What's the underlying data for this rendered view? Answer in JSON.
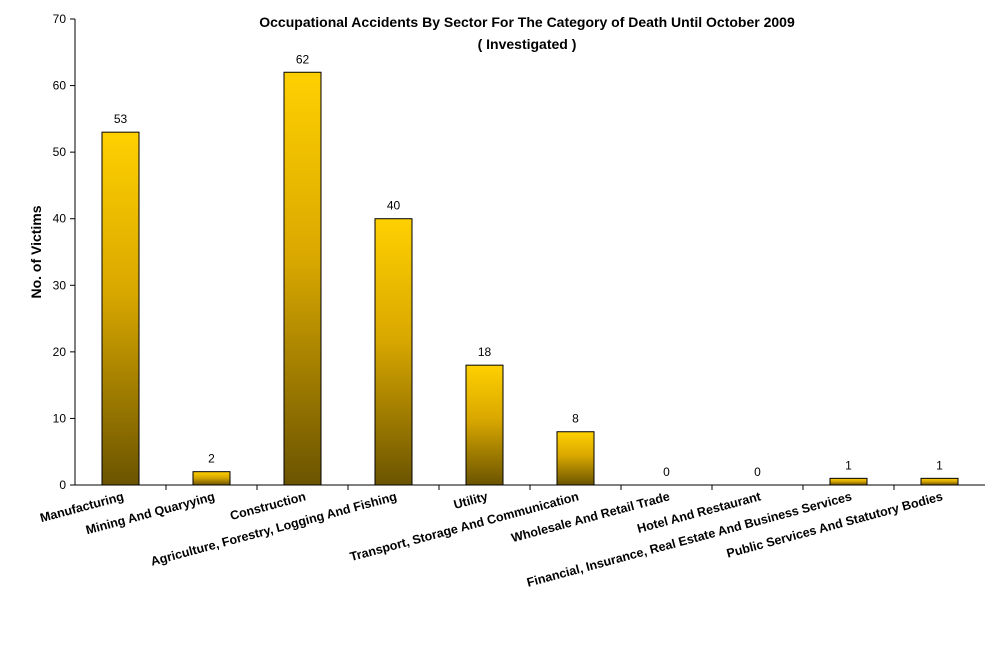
{
  "chart_data": {
    "type": "bar",
    "title": "Occupational Accidents By Sector For The Category of Death Until October 2009",
    "subtitle": "( Investigated )",
    "xlabel": "",
    "ylabel": "No. of Victims",
    "ylim": [
      0,
      70
    ],
    "yticks": [
      "0",
      "10",
      "20",
      "30",
      "40",
      "50",
      "60",
      "70"
    ],
    "categories": [
      "Manufacturing",
      "Mining And Quaryying",
      "Construction",
      "Agriculture, Forestry, Logging And Fishing",
      "Utility",
      "Transport, Storage And Communication",
      "Wholesale And Retail Trade",
      "Hotel And Restaurant",
      "Financial, Insurance, Real Estate And Business Services",
      "Public Services And Statutory Bodies"
    ],
    "values": [
      53,
      2,
      62,
      40,
      18,
      8,
      0,
      0,
      1,
      1
    ],
    "data_labels": [
      "53",
      "2",
      "62",
      "40",
      "18",
      "8",
      "0",
      "0",
      "1",
      "1"
    ],
    "grid": false,
    "legend": "none",
    "colors": {
      "bar_top": "#ffd000",
      "bar_bottom": "#6b5400",
      "bar_stroke": "#000000",
      "axis": "#000000"
    }
  }
}
